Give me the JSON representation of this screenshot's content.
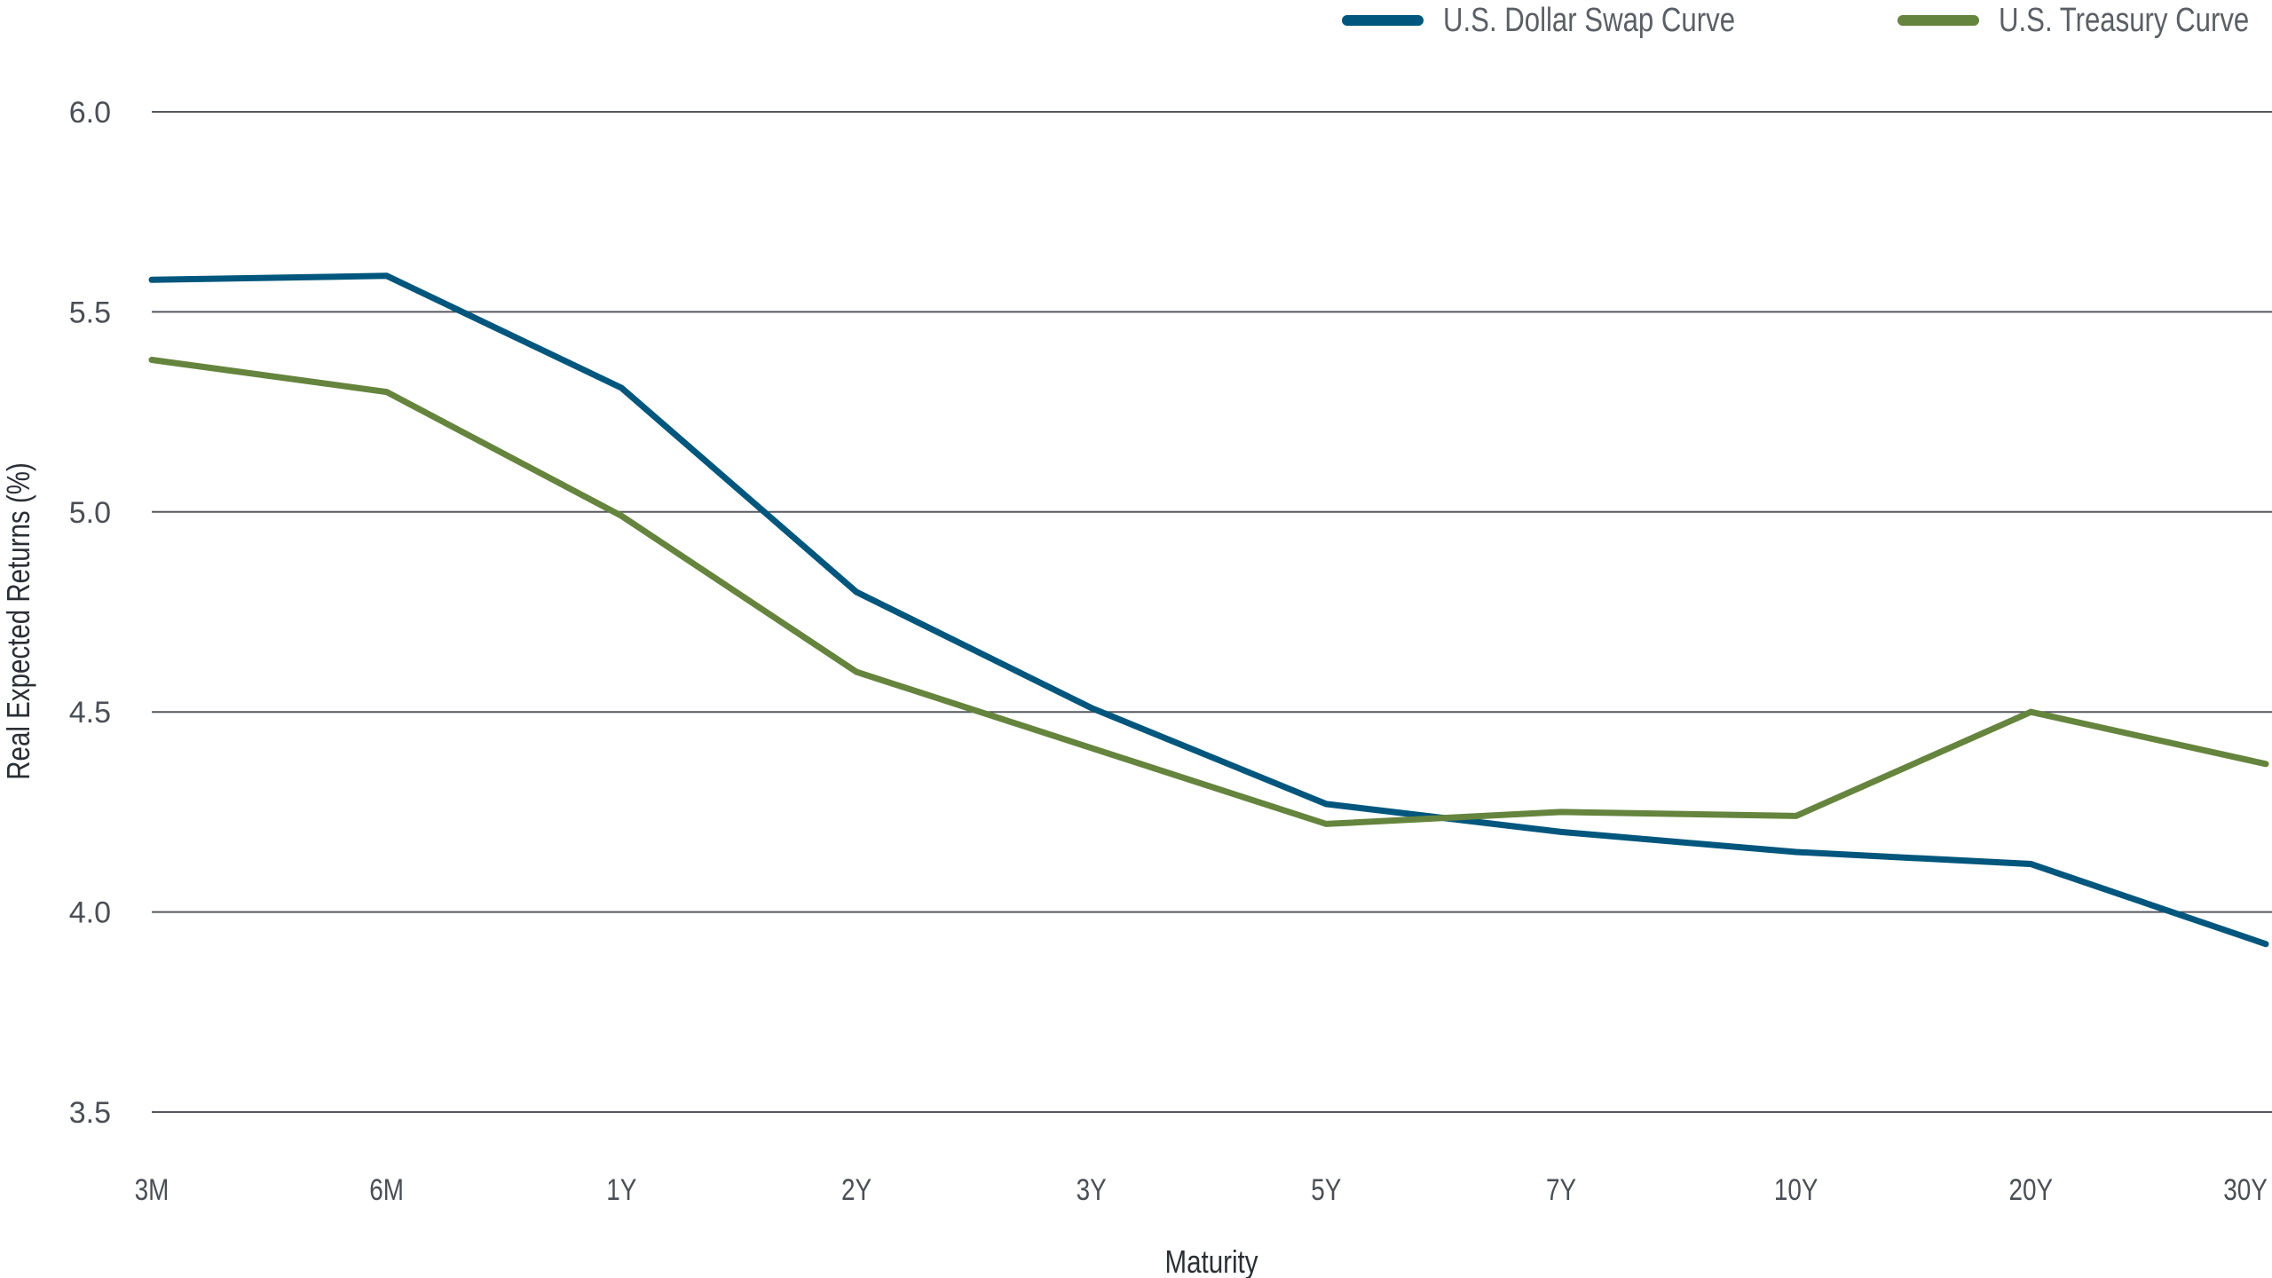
{
  "chart_data": {
    "type": "line",
    "title": "",
    "xlabel": "Maturity",
    "ylabel": "Real Expected Returns (%)",
    "categories": [
      "3M",
      "6M",
      "1Y",
      "2Y",
      "3Y",
      "5Y",
      "7Y",
      "10Y",
      "20Y",
      "30Y"
    ],
    "ylim": [
      3.5,
      6.0
    ],
    "yticks": [
      "3.5",
      "4.0",
      "4.5",
      "5.0",
      "5.5",
      "6.0"
    ],
    "grid": true,
    "legend_position": "top-right",
    "series": [
      {
        "name": "U.S. Dollar Swap Curve",
        "color": "#00567d",
        "values": [
          5.58,
          5.59,
          5.31,
          4.8,
          4.51,
          4.27,
          4.2,
          4.15,
          4.12,
          3.92
        ]
      },
      {
        "name": "U.S. Treasury Curve",
        "color": "#65843d",
        "values": [
          5.38,
          5.3,
          4.99,
          4.6,
          4.41,
          4.22,
          4.25,
          4.24,
          4.5,
          4.37
        ]
      }
    ]
  },
  "legend": {
    "items": [
      {
        "label": "U.S. Dollar Swap Curve",
        "color": "#00567d"
      },
      {
        "label": "U.S. Treasury Curve",
        "color": "#65843d"
      }
    ]
  },
  "axes": {
    "x_title": "Maturity",
    "y_title": "Real Expected Returns (%)"
  },
  "colors": {
    "grid": "#55595f",
    "swap": "#00567d",
    "treasury": "#65843d"
  }
}
